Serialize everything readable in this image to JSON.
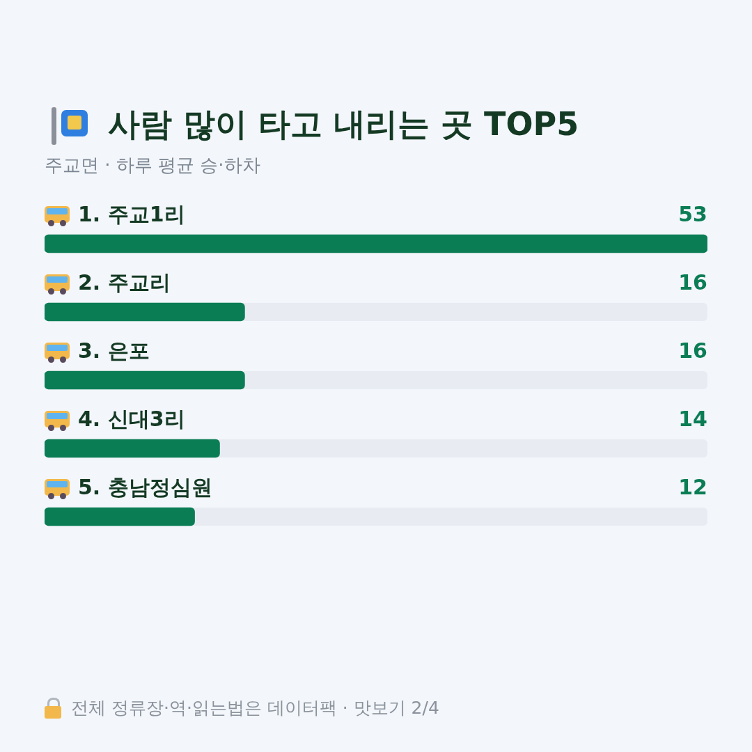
{
  "chart_data": {
    "type": "bar",
    "orientation": "horizontal",
    "title": "사람 많이 타고 내리는 곳 TOP5",
    "subtitle": "주교면 · 하루 평균 승·하차",
    "categories": [
      "1. 주교1리",
      "2. 주교리",
      "3. 은포",
      "4. 신대3리",
      "5. 충남정심원"
    ],
    "values": [
      53,
      16,
      16,
      14,
      12
    ],
    "color": "#0b7d55",
    "data_labels": true,
    "annotations": [
      "전체 정류장·역·읽는법은 데이터팩 · 맛보기 2/4"
    ]
  }
}
